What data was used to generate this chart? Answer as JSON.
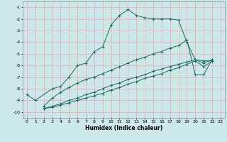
{
  "title": "",
  "xlabel": "Humidex (Indice chaleur)",
  "bg_color": "#cce8e8",
  "grid_color": "#e8b0b0",
  "line_color": "#1a6b5a",
  "xlim": [
    -0.5,
    23.5
  ],
  "ylim": [
    -10.5,
    -0.5
  ],
  "yticks": [
    -1,
    -2,
    -3,
    -4,
    -5,
    -6,
    -7,
    -8,
    -9,
    -10
  ],
  "xticks": [
    0,
    1,
    2,
    3,
    4,
    5,
    6,
    7,
    8,
    9,
    10,
    11,
    12,
    13,
    14,
    15,
    16,
    17,
    18,
    19,
    20,
    21,
    22,
    23
  ],
  "series": [
    {
      "x": [
        0,
        1,
        3,
        4,
        5,
        6,
        7,
        8,
        9,
        10,
        11,
        12,
        13,
        14,
        15,
        16,
        17,
        18,
        19,
        20,
        21,
        22
      ],
      "y": [
        -8.5,
        -9.0,
        -8.0,
        -7.8,
        -7.0,
        -6.0,
        -5.8,
        -4.8,
        -4.4,
        -2.5,
        -1.7,
        -1.2,
        -1.7,
        -1.9,
        -2.0,
        -2.0,
        -2.0,
        -2.1,
        -4.0,
        -5.5,
        -5.6,
        -5.6
      ]
    },
    {
      "x": [
        2,
        3,
        4,
        5,
        6,
        7,
        8,
        9,
        10,
        11,
        12,
        13,
        14,
        15,
        16,
        17,
        18,
        19,
        20,
        21,
        22
      ],
      "y": [
        -9.5,
        -8.8,
        -8.3,
        -7.9,
        -7.5,
        -7.2,
        -7.0,
        -6.7,
        -6.4,
        -6.1,
        -5.8,
        -5.5,
        -5.3,
        -5.0,
        -4.8,
        -4.5,
        -4.3,
        -3.8,
        -6.8,
        -6.8,
        -5.5
      ]
    },
    {
      "x": [
        2,
        3,
        4,
        5,
        6,
        7,
        8,
        9,
        10,
        11,
        12,
        13,
        14,
        15,
        16,
        17,
        18,
        19,
        20,
        21,
        22
      ],
      "y": [
        -9.7,
        -9.5,
        -9.3,
        -9.0,
        -8.8,
        -8.5,
        -8.3,
        -8.0,
        -7.7,
        -7.5,
        -7.2,
        -7.0,
        -6.8,
        -6.5,
        -6.3,
        -6.1,
        -5.9,
        -5.7,
        -5.5,
        -5.8,
        -5.5
      ]
    },
    {
      "x": [
        2,
        3,
        4,
        5,
        6,
        7,
        8,
        9,
        10,
        11,
        12,
        13,
        14,
        15,
        16,
        17,
        18,
        19,
        20,
        21,
        22
      ],
      "y": [
        -9.7,
        -9.6,
        -9.4,
        -9.2,
        -9.0,
        -8.8,
        -8.6,
        -8.4,
        -8.1,
        -7.9,
        -7.6,
        -7.4,
        -7.1,
        -6.9,
        -6.7,
        -6.4,
        -6.2,
        -5.9,
        -5.6,
        -6.1,
        -5.6
      ]
    }
  ]
}
